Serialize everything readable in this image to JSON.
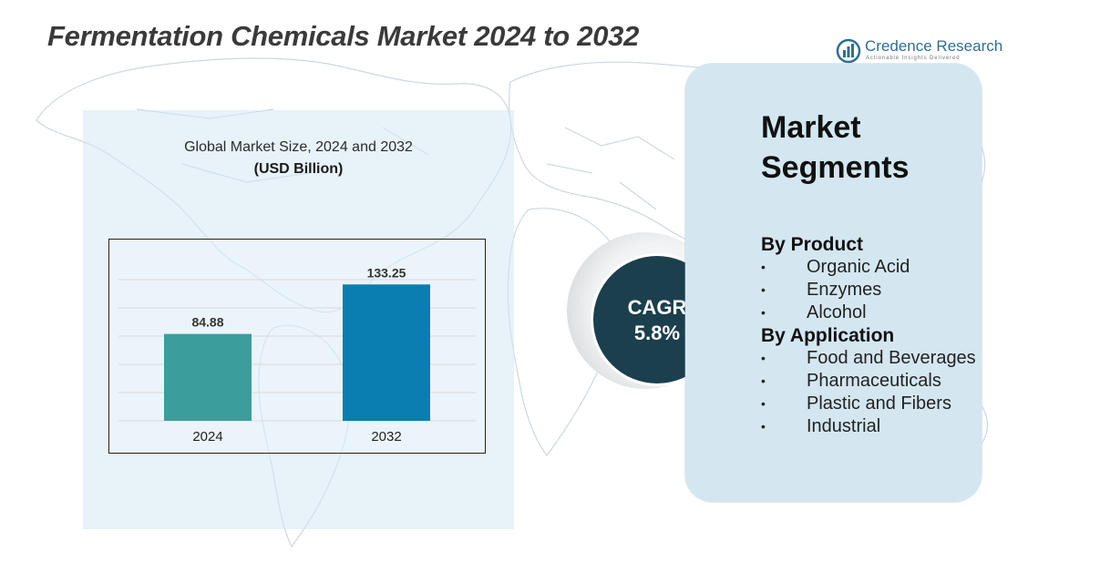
{
  "page": {
    "title": "Fermentation Chemicals Market 2024 to 2032"
  },
  "brand": {
    "name": "Credence Research",
    "tagline": "Actionable Insights Delivered",
    "color": "#2f6e93"
  },
  "chart": {
    "title": "Global Market Size, 2024 and 2032",
    "unit": "(USD Billion)"
  },
  "chart_data": {
    "type": "bar",
    "title": "Global Market Size, 2024 and 2032",
    "subtitle": "(USD Billion)",
    "categories": [
      "2024",
      "2032"
    ],
    "values": [
      84.88,
      133.25
    ],
    "data_labels": [
      "84.88",
      "133.25"
    ],
    "colors": [
      "#3a9e9c",
      "#0a7eb0"
    ],
    "ylim": [
      0,
      170
    ],
    "grid": true,
    "legend": "none"
  },
  "cagr": {
    "label": "CAGR",
    "value": "5.8%",
    "circle_color": "#1c3f4d"
  },
  "segments": {
    "heading_line1": "Market",
    "heading_line2": "Segments",
    "bullet": "•",
    "groups": [
      {
        "title": "By Product",
        "items": [
          "Organic Acid",
          "Enzymes",
          "Alcohol"
        ]
      },
      {
        "title": "By Application",
        "items": [
          "Food and Beverages",
          "Pharmaceuticals",
          "Plastic and Fibers",
          "Industrial"
        ]
      }
    ]
  },
  "colors": {
    "panel_bg": "#d6e8f4",
    "card_bg": "#d4e7f1",
    "title_text": "#3a3a3a"
  }
}
